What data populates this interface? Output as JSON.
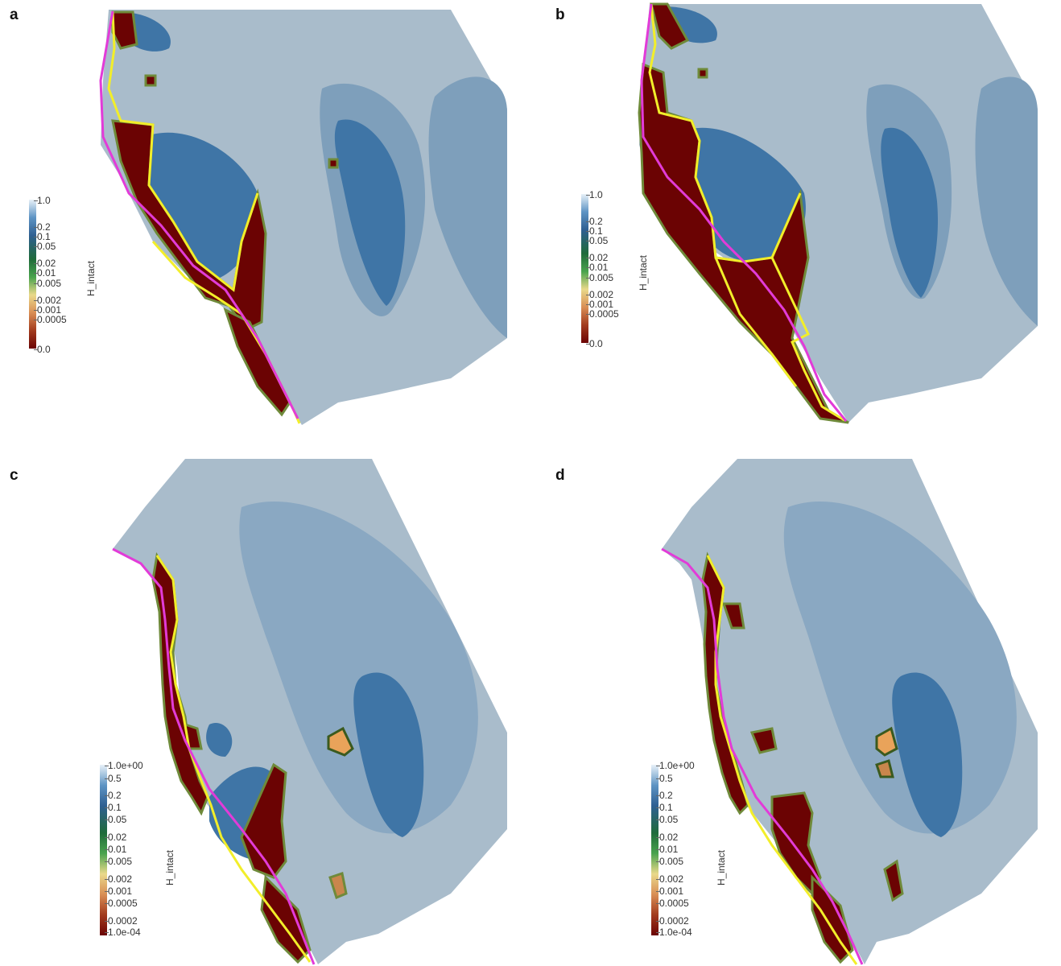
{
  "panels": [
    {
      "letter": "a",
      "colorbar": {
        "title": "H_intact",
        "ticks": [
          "1.0",
          "0.2",
          "0.1",
          "0.05",
          "0.02",
          "0.01",
          "0.005",
          "0.002",
          "0.001",
          "0.0005",
          "0.0"
        ]
      }
    },
    {
      "letter": "b",
      "colorbar": {
        "title": "H_intact",
        "ticks": [
          "1.0",
          "0.2",
          "0.1",
          "0.05",
          "0.02",
          "0.01",
          "0.005",
          "0.002",
          "0.001",
          "0.0005",
          "0.0"
        ]
      }
    },
    {
      "letter": "c",
      "colorbar": {
        "title": "H_intact",
        "ticks": [
          "1.0e+00",
          "0.5",
          "0.2",
          "0.1",
          "0.05",
          "0.02",
          "0.01",
          "0.005",
          "0.002",
          "0.001",
          "0.0005",
          "0.0002",
          "1.0e-04"
        ]
      }
    },
    {
      "letter": "d",
      "colorbar": {
        "title": "H_intact",
        "ticks": [
          "1.0e+00",
          "0.5",
          "0.2",
          "0.1",
          "0.05",
          "0.02",
          "0.01",
          "0.005",
          "0.002",
          "0.001",
          "0.0005",
          "0.0002",
          "1.0e-04"
        ]
      }
    }
  ],
  "colors": {
    "domain_light": "#a9bccb",
    "domain_mid": "#7e9fbb",
    "domain_dark": "#3f75a6",
    "intact_dark_red": "#6b0303",
    "boundary_yellow": "#f2ee2a",
    "boundary_magenta": "#e23bd8",
    "contour_olive": "#6f8a3a"
  }
}
